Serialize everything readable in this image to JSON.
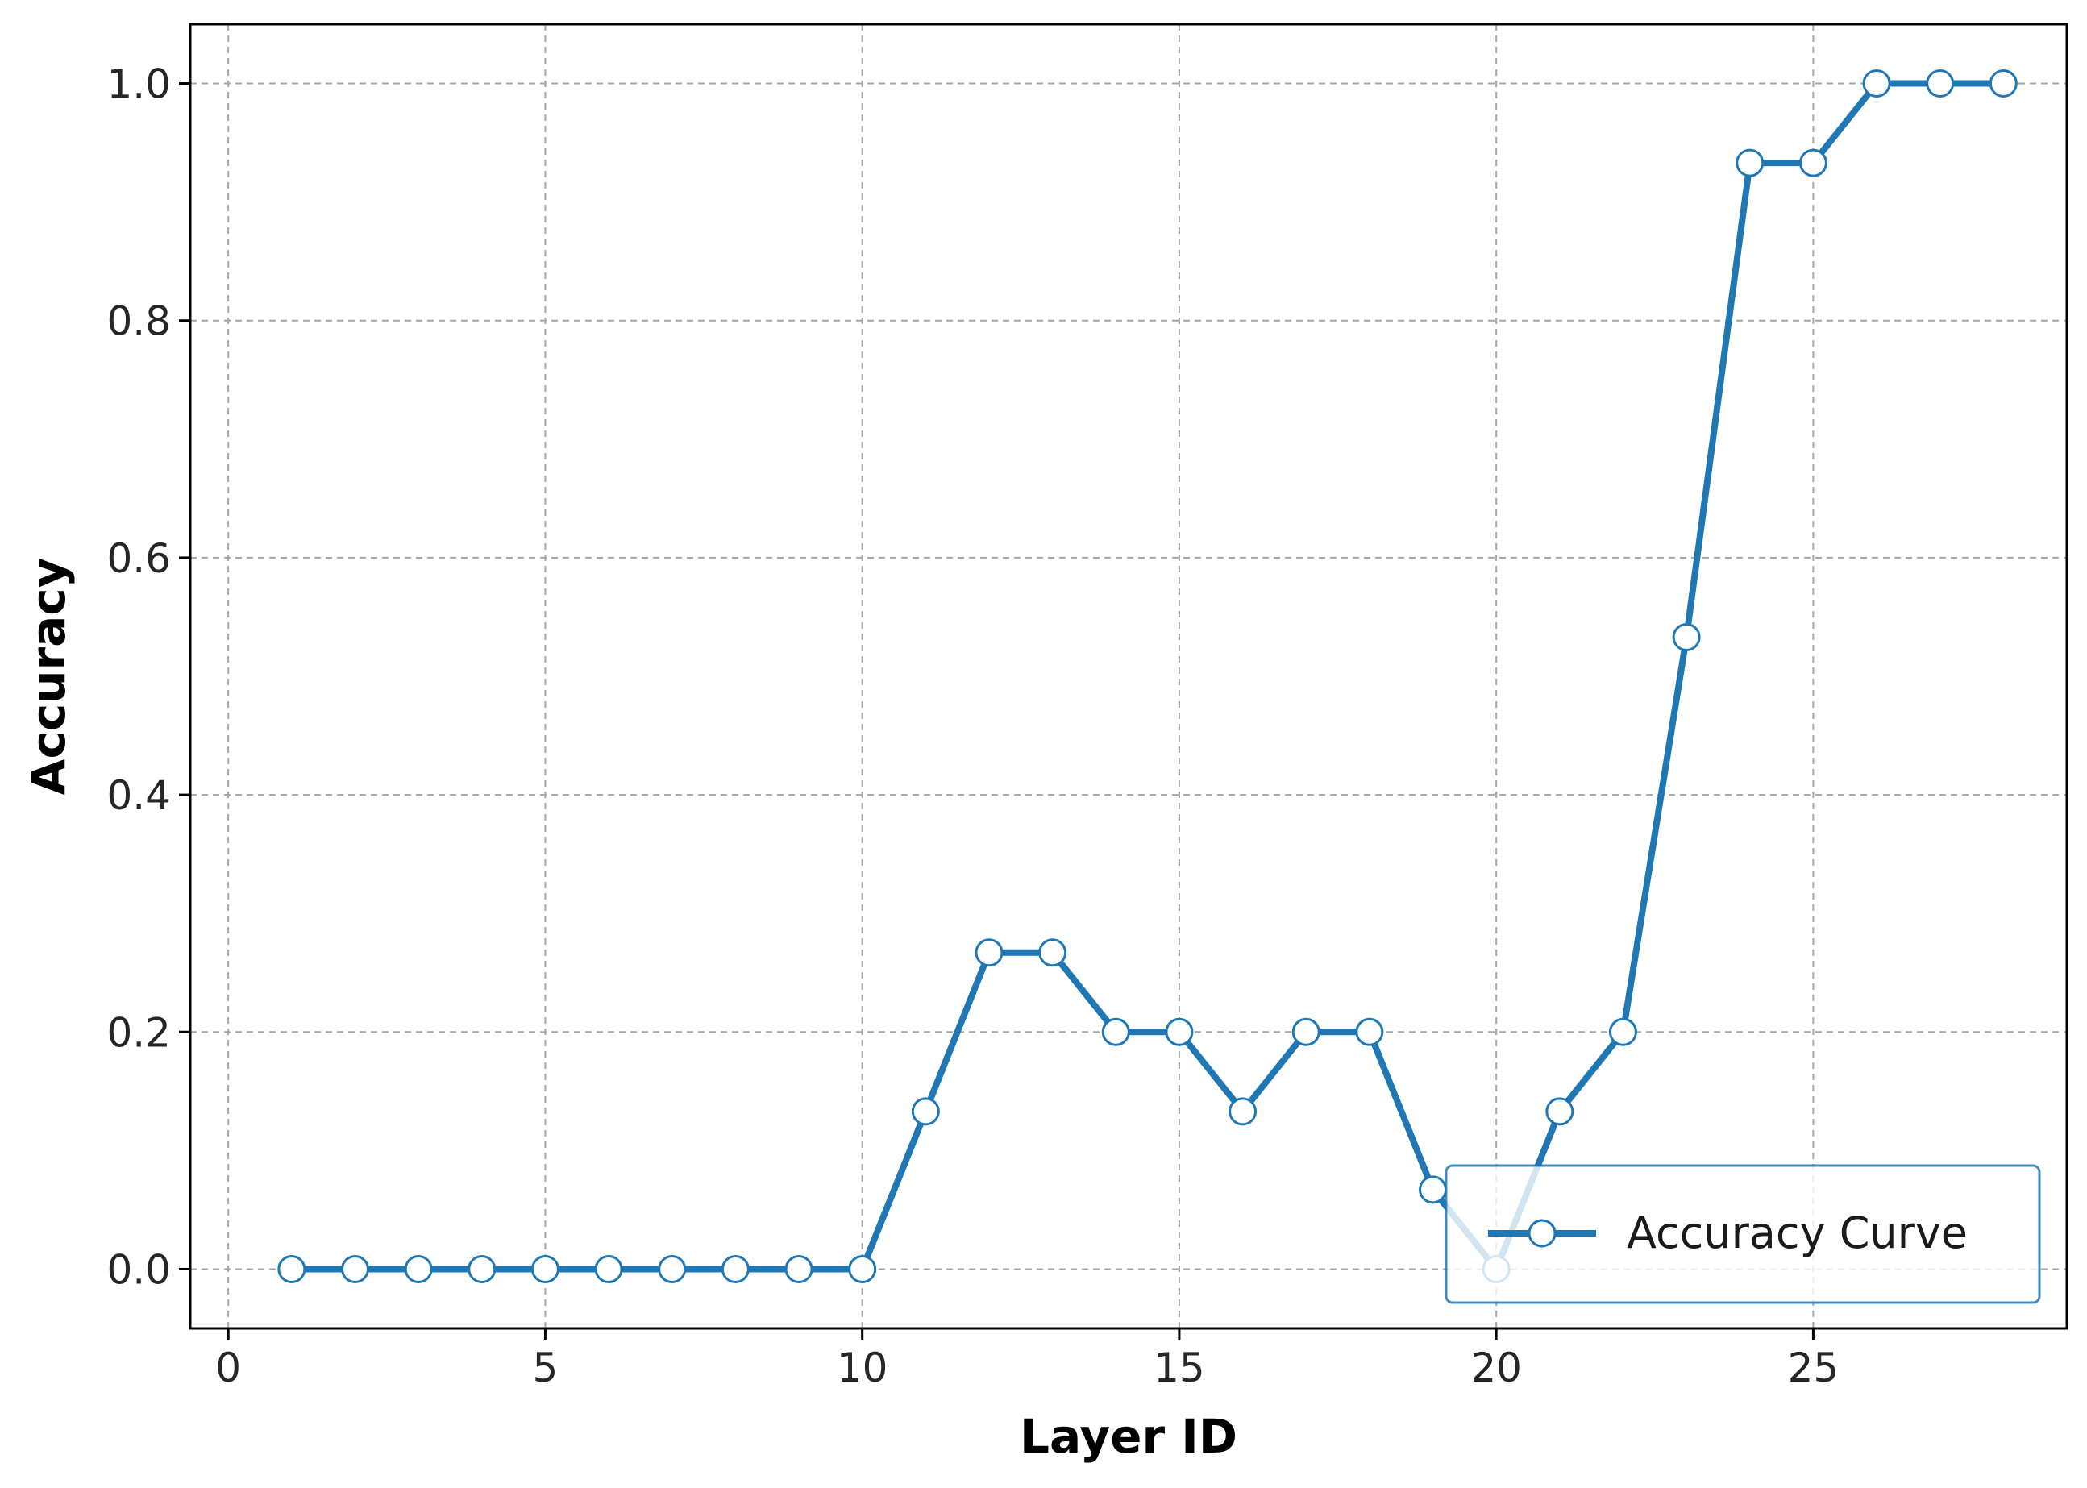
{
  "chart_data": {
    "type": "line",
    "title": "",
    "xlabel": "Layer ID",
    "ylabel": "Accuracy",
    "xlim": [
      -0.6,
      29.0
    ],
    "ylim": [
      -0.05,
      1.05
    ],
    "xticks": [
      0,
      5,
      10,
      15,
      20,
      25
    ],
    "yticks": [
      0.0,
      0.2,
      0.4,
      0.6,
      0.8,
      1.0
    ],
    "grid": true,
    "legend_position": "lower-right",
    "colors": {
      "line": "#1f77b4",
      "marker_fill": "#ffffff"
    },
    "series": [
      {
        "name": "Accuracy Curve",
        "x": [
          1,
          2,
          3,
          4,
          5,
          6,
          7,
          8,
          9,
          10,
          11,
          12,
          13,
          14,
          15,
          16,
          17,
          18,
          19,
          20,
          21,
          22,
          23,
          24,
          25,
          26,
          27,
          28
        ],
        "y": [
          0.0,
          0.0,
          0.0,
          0.0,
          0.0,
          0.0,
          0.0,
          0.0,
          0.0,
          0.0,
          0.133,
          0.267,
          0.267,
          0.2,
          0.2,
          0.133,
          0.2,
          0.2,
          0.067,
          0.0,
          0.133,
          0.2,
          0.533,
          0.933,
          0.933,
          1.0,
          1.0,
          1.0
        ]
      }
    ]
  }
}
